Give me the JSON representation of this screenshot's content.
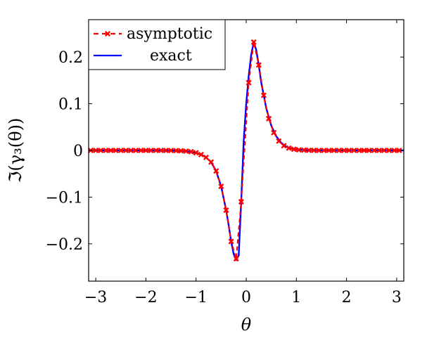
{
  "chart_data": {
    "type": "line",
    "title": "",
    "xlabel": "θ",
    "ylabel": "ℑ(γ₃(θ))",
    "xlim": [
      -3.1416,
      3.1416
    ],
    "ylim": [
      -0.28,
      0.28
    ],
    "xticks": [
      -3,
      -2,
      -1,
      0,
      1,
      2,
      3
    ],
    "xtick_labels": [
      "−3",
      "−2",
      "−1",
      "0",
      "1",
      "2",
      "3"
    ],
    "yticks": [
      -0.2,
      -0.1,
      0,
      0.1,
      0.2
    ],
    "ytick_labels": [
      "−0.2",
      "−0.1",
      "0",
      "0.1",
      "0.2"
    ],
    "grid": false,
    "legend": {
      "position": "top-left",
      "entries": [
        "asymptotic",
        "exact"
      ]
    },
    "series": [
      {
        "name": "asymptotic",
        "color": "#ff0000",
        "style": "dashed-with-cross-markers",
        "x": [
          -3.1,
          -3.0,
          -2.9,
          -2.8,
          -2.7,
          -2.6,
          -2.5,
          -2.4,
          -2.3,
          -2.2,
          -2.1,
          -2.0,
          -1.9,
          -1.8,
          -1.7,
          -1.6,
          -1.5,
          -1.4,
          -1.3,
          -1.2,
          -1.1,
          -1.0,
          -0.9,
          -0.8,
          -0.7,
          -0.6,
          -0.5,
          -0.4,
          -0.3,
          -0.2,
          -0.1,
          0.05,
          0.15,
          0.25,
          0.35,
          0.45,
          0.55,
          0.65,
          0.75,
          0.85,
          0.95,
          1.05,
          1.15,
          1.25,
          1.35,
          1.45,
          1.55,
          1.65,
          1.75,
          1.85,
          1.95,
          2.05,
          2.15,
          2.25,
          2.35,
          2.45,
          2.55,
          2.65,
          2.75,
          2.85,
          2.95,
          3.05
        ],
        "y": [
          0,
          0,
          0,
          0,
          0,
          0,
          0,
          0,
          0,
          0,
          0,
          0,
          0,
          0,
          0,
          -0.0001,
          -0.0002,
          -0.0004,
          -0.0008,
          -0.0015,
          -0.0028,
          -0.005,
          -0.009,
          -0.015,
          -0.025,
          -0.044,
          -0.077,
          -0.128,
          -0.195,
          -0.232,
          -0.11,
          0.145,
          0.232,
          0.183,
          0.118,
          0.068,
          0.038,
          0.02,
          0.01,
          0.005,
          0.0025,
          0.0012,
          0.0006,
          0.0003,
          0.0001,
          0,
          0,
          0,
          0,
          0,
          0,
          0,
          0,
          0,
          0,
          0,
          0,
          0,
          0,
          0,
          0,
          0
        ]
      },
      {
        "name": "exact",
        "color": "#0000ff",
        "style": "solid",
        "x": [
          -3.1416,
          -2.5,
          -2.0,
          -1.5,
          -1.2,
          -1.0,
          -0.9,
          -0.8,
          -0.7,
          -0.6,
          -0.5,
          -0.4,
          -0.35,
          -0.3,
          -0.25,
          -0.2,
          -0.15,
          -0.1,
          -0.05,
          0.0,
          0.05,
          0.1,
          0.15,
          0.2,
          0.25,
          0.3,
          0.35,
          0.4,
          0.5,
          0.6,
          0.7,
          0.8,
          0.9,
          1.0,
          1.2,
          1.5,
          2.0,
          2.5,
          3.1416
        ],
        "y": [
          0,
          0,
          0,
          -0.0002,
          -0.0015,
          -0.005,
          -0.009,
          -0.015,
          -0.025,
          -0.044,
          -0.077,
          -0.128,
          -0.16,
          -0.195,
          -0.222,
          -0.235,
          -0.225,
          -0.11,
          0.02,
          0.1,
          0.16,
          0.205,
          0.232,
          0.215,
          0.183,
          0.145,
          0.118,
          0.09,
          0.053,
          0.03,
          0.016,
          0.008,
          0.004,
          0.002,
          0.0005,
          0,
          0,
          0,
          0
        ]
      }
    ]
  }
}
